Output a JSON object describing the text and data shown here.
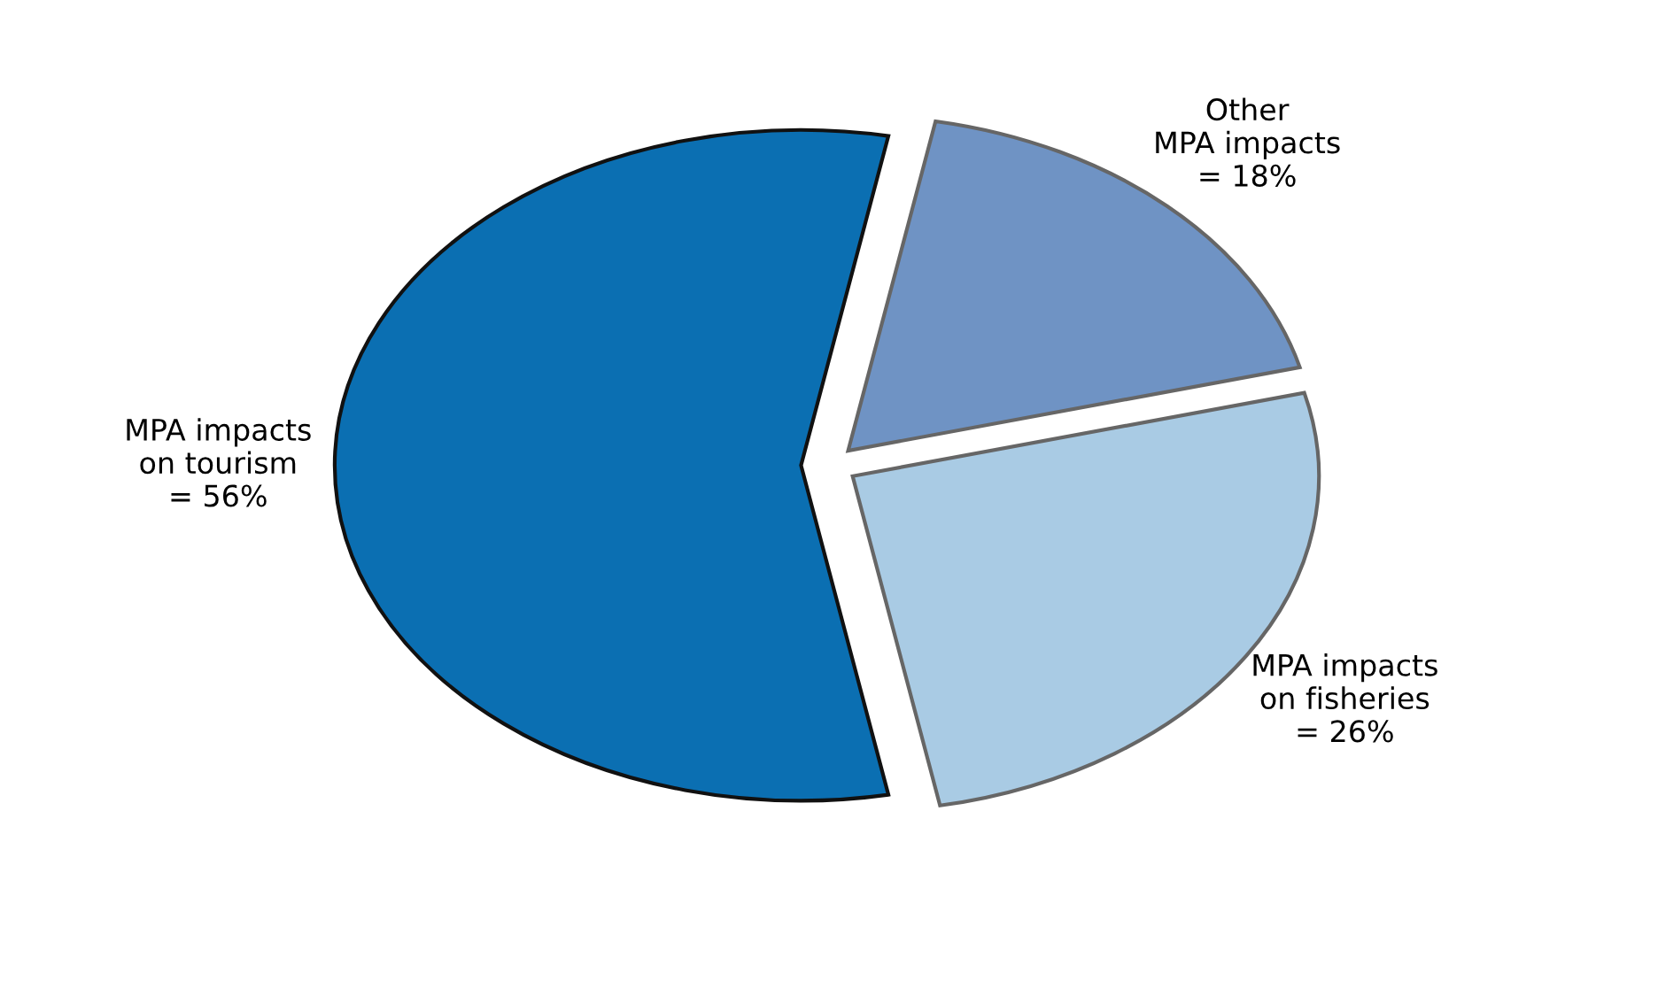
{
  "chart_data": {
    "type": "pie",
    "categories": [
      "MPA impacts\non tourism",
      "MPA impacts\non fisheries",
      "Other\nMPA impacts"
    ],
    "values": [
      56,
      26,
      18
    ],
    "value_labels": [
      "= 56%",
      "= 26%",
      "= 18%"
    ],
    "colors": [
      "#0b6fb2",
      "#a9cbe4",
      "#6f93c4"
    ],
    "legend": false
  }
}
